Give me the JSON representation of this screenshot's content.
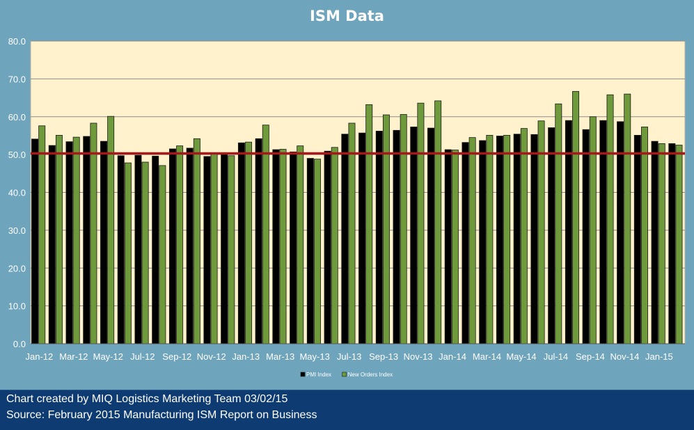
{
  "chart_data": {
    "type": "bar",
    "title": "ISM Data",
    "xlabel": "",
    "ylabel": "",
    "ylim": [
      0,
      80
    ],
    "yticks": [
      "0.0",
      "10.0",
      "20.0",
      "30.0",
      "40.0",
      "50.0",
      "60.0",
      "70.0",
      "80.0"
    ],
    "grid": true,
    "legend_position": "bottom",
    "categories": [
      "Jan-12",
      "Feb-12",
      "Mar-12",
      "Apr-12",
      "May-12",
      "Jun-12",
      "Jul-12",
      "Aug-12",
      "Sep-12",
      "Oct-12",
      "Nov-12",
      "Dec-12",
      "Jan-13",
      "Feb-13",
      "Mar-13",
      "Apr-13",
      "May-13",
      "Jun-13",
      "Jul-13",
      "Aug-13",
      "Sep-13",
      "Oct-13",
      "Nov-13",
      "Dec-13",
      "Jan-14",
      "Feb-14",
      "Mar-14",
      "Apr-14",
      "May-14",
      "Jun-14",
      "Jul-14",
      "Aug-14",
      "Sep-14",
      "Oct-14",
      "Nov-14",
      "Dec-14",
      "Jan-15",
      "Feb-15"
    ],
    "tick_labels": [
      "Jan-12",
      "Mar-12",
      "May-12",
      "Jul-12",
      "Sep-12",
      "Nov-12",
      "Jan-13",
      "Mar-13",
      "May-13",
      "Jul-13",
      "Sep-13",
      "Nov-13",
      "Jan-14",
      "Mar-14",
      "May-14",
      "Jul-14",
      "Sep-14",
      "Nov-14",
      "Jan-15"
    ],
    "series": [
      {
        "name": "PMI Index",
        "color": "#000000",
        "values": [
          54.1,
          52.4,
          53.4,
          54.8,
          53.5,
          49.7,
          49.8,
          49.6,
          51.5,
          51.7,
          49.5,
          50.2,
          53.1,
          54.2,
          51.3,
          50.7,
          49.0,
          50.9,
          55.4,
          55.7,
          56.2,
          56.4,
          57.3,
          57.0,
          51.3,
          53.2,
          53.7,
          54.9,
          55.4,
          55.3,
          57.1,
          59.0,
          56.6,
          59.0,
          58.7,
          55.1,
          53.5,
          52.9
        ]
      },
      {
        "name": "New Orders Index",
        "color": "#6e9a3c",
        "values": [
          57.6,
          55.1,
          54.6,
          58.3,
          60.1,
          47.8,
          48.0,
          47.1,
          52.3,
          54.2,
          50.3,
          49.7,
          53.3,
          57.8,
          51.4,
          52.3,
          48.8,
          51.9,
          58.3,
          63.2,
          60.5,
          60.6,
          63.6,
          64.2,
          51.2,
          54.5,
          55.1,
          55.1,
          56.9,
          58.9,
          63.4,
          66.7,
          60.0,
          65.8,
          66.0,
          57.3,
          52.9,
          52.5
        ]
      }
    ],
    "reference_line": {
      "value": 50.3,
      "color": "#a41a1a"
    }
  },
  "footer": {
    "line1": "Chart created by MIQ Logistics Marketing Team 03/02/15",
    "line2": "Source: February 2015 Manufacturing ISM Report on Business"
  }
}
